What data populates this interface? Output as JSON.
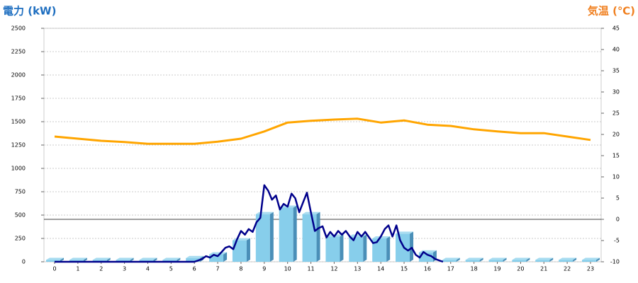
{
  "chart_data": {
    "type": "combo",
    "title_left": "電力 (kW)",
    "title_right": "気温 (℃)",
    "categories": [
      "0",
      "1",
      "2",
      "3",
      "4",
      "5",
      "6",
      "7",
      "8",
      "9",
      "10",
      "11",
      "12",
      "13",
      "14",
      "15",
      "16",
      "17",
      "18",
      "19",
      "20",
      "21",
      "22",
      "23"
    ],
    "ylim": [
      0,
      2500
    ],
    "yticks": [
      0,
      250,
      500,
      750,
      1000,
      1250,
      1500,
      1750,
      2000,
      2250,
      2500
    ],
    "y2lim": [
      -10,
      45
    ],
    "y2ticks": [
      -10,
      -5,
      0,
      5,
      10,
      15,
      20,
      25,
      30,
      35,
      40,
      45
    ],
    "grid": true,
    "series": [
      {
        "type": "bar",
        "color": "#87ceeb",
        "values": [
          20,
          20,
          20,
          20,
          20,
          20,
          40,
          80,
          230,
          510,
          580,
          510,
          270,
          270,
          250,
          300,
          100,
          20,
          20,
          20,
          20,
          20,
          20,
          20
        ]
      },
      {
        "type": "line",
        "color": "#00008b",
        "x": [
          0,
          6,
          6.17,
          6.33,
          6.5,
          6.67,
          6.83,
          7,
          7.17,
          7.33,
          7.5,
          7.67,
          7.83,
          8,
          8.17,
          8.33,
          8.5,
          8.67,
          8.83,
          9,
          9.17,
          9.33,
          9.5,
          9.67,
          9.83,
          10,
          10.17,
          10.33,
          10.5,
          10.67,
          10.83,
          11,
          11.17,
          11.33,
          11.5,
          11.67,
          11.83,
          12,
          12.17,
          12.33,
          12.5,
          12.67,
          12.83,
          13,
          13.17,
          13.33,
          13.5,
          13.67,
          13.83,
          14,
          14.17,
          14.33,
          14.5,
          14.67,
          14.83,
          15,
          15.17,
          15.33,
          15.5,
          15.67,
          15.83,
          16,
          16.17,
          16.33,
          16.67
        ],
        "values": [
          0,
          0,
          15,
          30,
          60,
          45,
          75,
          60,
          105,
          150,
          165,
          135,
          240,
          330,
          290,
          350,
          320,
          425,
          470,
          820,
          760,
          665,
          710,
          560,
          620,
          590,
          730,
          680,
          530,
          640,
          740,
          530,
          330,
          360,
          380,
          260,
          320,
          270,
          330,
          290,
          330,
          270,
          230,
          320,
          270,
          320,
          260,
          200,
          210,
          270,
          350,
          390,
          270,
          390,
          230,
          150,
          120,
          150,
          75,
          45,
          105,
          75,
          60,
          30,
          0
        ]
      },
      {
        "type": "line",
        "axis": "y2",
        "color": "#ffa500",
        "values": [
          19.5,
          19,
          18.5,
          18.2,
          17.8,
          17.8,
          17.8,
          18.3,
          19,
          20.7,
          22.8,
          23.2,
          23.5,
          23.7,
          22.8,
          23.3,
          22.3,
          22,
          21.2,
          20.7,
          20.3,
          20.3,
          19.5,
          18.7
        ]
      }
    ]
  }
}
